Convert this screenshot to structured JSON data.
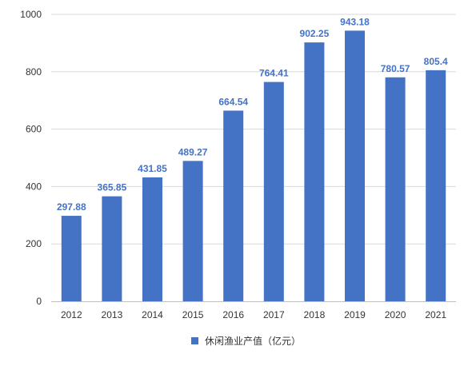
{
  "chart_data": {
    "type": "bar",
    "title": "",
    "xlabel": "",
    "ylabel": "",
    "categories": [
      "2012",
      "2013",
      "2014",
      "2015",
      "2016",
      "2017",
      "2018",
      "2019",
      "2020",
      "2021"
    ],
    "series": [
      {
        "name": "休闲渔业产值（亿元）",
        "values": [
          297.88,
          365.85,
          431.85,
          489.27,
          664.54,
          764.41,
          902.25,
          943.18,
          780.57,
          805.4
        ],
        "labels": [
          "297.88",
          "365.85",
          "431.85",
          "489.27",
          "664.54",
          "764.41",
          "902.25",
          "943.18",
          "780.57",
          "805.4"
        ],
        "color": "#4472c4"
      }
    ],
    "ylim": [
      0,
      1000
    ],
    "yticks": [
      0,
      200,
      400,
      600,
      800,
      1000
    ],
    "grid": true,
    "legend_position": "bottom-center",
    "colors": {
      "bar": "#4472c4",
      "data_label": "#4472c4",
      "grid": "#d9d9d9",
      "axis": "#bfbfbf",
      "text": "#333333"
    }
  }
}
